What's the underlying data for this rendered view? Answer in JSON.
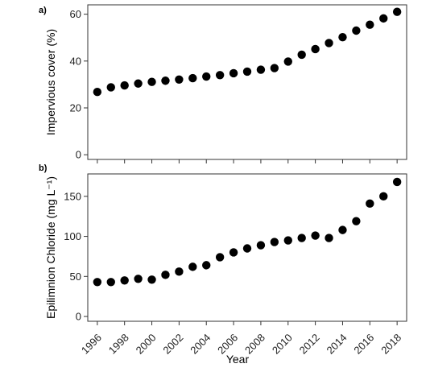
{
  "chart_data": [
    {
      "type": "scatter",
      "panel_label": "a)",
      "title": "",
      "xlabel": "",
      "ylabel": "Impervious cover (%)",
      "xlim": [
        1995.3,
        2018.7
      ],
      "ylim": [
        -2,
        64
      ],
      "yticks": [
        0,
        20,
        40,
        60
      ],
      "grid": false,
      "x": [
        1996,
        1997,
        1998,
        1999,
        2000,
        2001,
        2002,
        2003,
        2004,
        2005,
        2006,
        2007,
        2008,
        2009,
        2010,
        2011,
        2012,
        2013,
        2014,
        2015,
        2016,
        2017,
        2018
      ],
      "y": [
        26.8,
        28.8,
        29.6,
        30.4,
        31.1,
        31.6,
        32.1,
        32.7,
        33.4,
        34.0,
        34.8,
        35.5,
        36.3,
        37.0,
        39.8,
        42.7,
        45.1,
        47.7,
        50.2,
        53.0,
        55.5,
        58.2,
        61.0
      ]
    },
    {
      "type": "scatter",
      "panel_label": "b)",
      "title": "",
      "xlabel": "Year",
      "ylabel": "Epilimnion Chloride (mg L⁻¹)",
      "xlim": [
        1995.3,
        2018.7
      ],
      "ylim": [
        -6,
        178
      ],
      "yticks": [
        0,
        50,
        100,
        150
      ],
      "grid": false,
      "x": [
        1996,
        1997,
        1998,
        1999,
        2000,
        2001,
        2002,
        2003,
        2004,
        2005,
        2006,
        2007,
        2008,
        2009,
        2010,
        2011,
        2012,
        2013,
        2014,
        2015,
        2016,
        2017,
        2018
      ],
      "y": [
        43,
        43,
        45,
        47,
        46,
        52,
        56,
        62,
        64,
        74,
        80,
        85,
        89,
        93,
        95,
        98,
        101,
        98,
        108,
        119,
        141,
        150,
        168
      ],
      "xticks": [
        "1996",
        "1998",
        "2000",
        "2002",
        "2004",
        "2006",
        "2008",
        "2010",
        "2012",
        "2014",
        "2016",
        "2018"
      ]
    }
  ],
  "colors": {
    "point": "#000000",
    "axis": "#333333",
    "text": "#222222"
  }
}
